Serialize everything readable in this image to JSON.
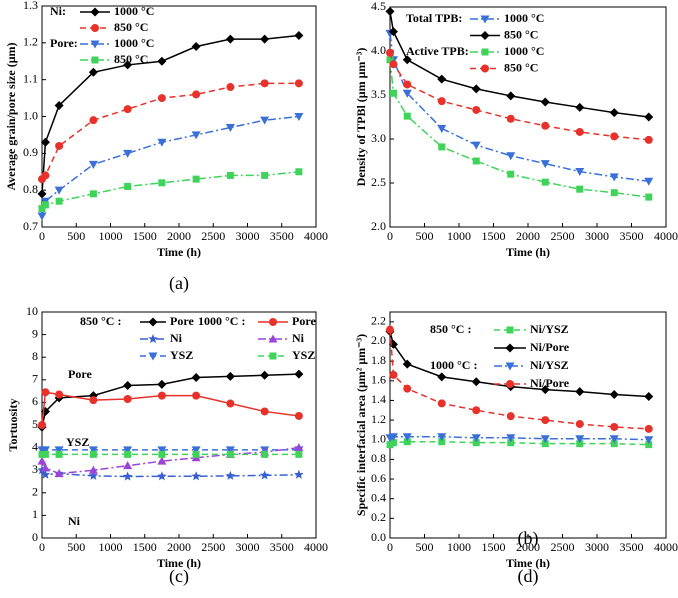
{
  "chart_data": [
    {
      "type": "line",
      "panel_label": "(a)",
      "xlabel": "Time (h)",
      "ylabel": "Average grain/pore size (μm)",
      "x": [
        0,
        50,
        250,
        750,
        1250,
        1750,
        2250,
        2750,
        3250,
        3750
      ],
      "xlim": [
        0,
        4000
      ],
      "xticks": [
        0,
        500,
        1000,
        1500,
        2000,
        2500,
        3000,
        3500,
        4000
      ],
      "ylim": [
        0.7,
        1.3
      ],
      "yticks": [
        0.7,
        0.8,
        0.9,
        {
          "value": 1.0,
          "label": "1.0"
        },
        1.1,
        1.2,
        1.3
      ],
      "series": [
        {
          "group": "Ni:",
          "name": "1000 °C",
          "color": "#000000",
          "marker": "diamond",
          "dash": "solid",
          "values": [
            0.79,
            0.93,
            1.03,
            1.12,
            1.14,
            1.15,
            1.19,
            1.21,
            1.21,
            1.22
          ]
        },
        {
          "group": "Ni:",
          "name": "850 °C",
          "color": "#e8312a",
          "marker": "circle",
          "dash": "dash",
          "values": [
            0.83,
            0.84,
            0.92,
            0.99,
            1.02,
            1.05,
            1.06,
            1.08,
            1.09,
            1.09
          ]
        },
        {
          "group": "Pore:",
          "name": "1000 °C",
          "color": "#3a6fd8",
          "marker": "tridown",
          "dash": "dashdot",
          "values": [
            0.73,
            0.77,
            0.8,
            0.87,
            0.9,
            0.93,
            0.95,
            0.97,
            0.99,
            1.0
          ]
        },
        {
          "group": "Pore:",
          "name": "850 °C",
          "color": "#3fd35a",
          "marker": "square",
          "dash": "dashdot",
          "values": [
            0.75,
            0.76,
            0.77,
            0.79,
            0.81,
            0.82,
            0.83,
            0.84,
            0.84,
            0.85
          ]
        }
      ]
    },
    {
      "type": "line",
      "panel_label": "(b)",
      "xlabel": "Time (h)",
      "ylabel": "Density of TPBl (μm μm⁻³)",
      "x": [
        0,
        50,
        250,
        750,
        1250,
        1750,
        2250,
        2750,
        3250,
        3750
      ],
      "xlim": [
        0,
        4000
      ],
      "xticks": [
        0,
        500,
        1000,
        1500,
        2000,
        2500,
        3000,
        3500,
        4000
      ],
      "ylim": [
        2.0,
        4.5
      ],
      "yticks": [
        {
          "value": 2.0,
          "label": "2.0"
        },
        2.5,
        {
          "value": 3.0,
          "label": "3.0"
        },
        3.5,
        {
          "value": 4.0,
          "label": "4.0"
        },
        4.5
      ],
      "series": [
        {
          "group": "Total TPB:",
          "name": "1000 °C",
          "color": "#3a6fd8",
          "marker": "tridown",
          "dash": "dashdot",
          "values": [
            4.2,
            3.9,
            3.52,
            3.12,
            2.93,
            2.81,
            2.72,
            2.63,
            2.57,
            2.52
          ]
        },
        {
          "group": "Total TPB:",
          "name": "850 °C",
          "color": "#000000",
          "marker": "diamond",
          "dash": "solid",
          "values": [
            4.45,
            4.22,
            3.9,
            3.68,
            3.57,
            3.49,
            3.42,
            3.36,
            3.3,
            3.25
          ]
        },
        {
          "group": "Active TPB:",
          "name": "1000 °C",
          "color": "#3fd35a",
          "marker": "square",
          "dash": "dashdot",
          "values": [
            3.9,
            3.52,
            3.26,
            2.91,
            2.75,
            2.6,
            2.51,
            2.43,
            2.39,
            2.34
          ]
        },
        {
          "group": "Active TPB:",
          "name": "850 °C",
          "color": "#e8312a",
          "marker": "circle",
          "dash": "dash",
          "values": [
            3.98,
            3.85,
            3.62,
            3.43,
            3.33,
            3.23,
            3.15,
            3.08,
            3.03,
            2.99
          ]
        }
      ]
    },
    {
      "type": "line",
      "panel_label": "(c)",
      "xlabel": "Time (h)",
      "ylabel": "Tortuosity",
      "annotations": [
        "Pore",
        "YSZ",
        "Ni"
      ],
      "x": [
        0,
        50,
        250,
        750,
        1250,
        1750,
        2250,
        2750,
        3250,
        3750
      ],
      "xlim": [
        0,
        4000
      ],
      "xticks": [
        0,
        500,
        1000,
        1500,
        2000,
        2500,
        3000,
        3500,
        4000
      ],
      "ylim": [
        0,
        10
      ],
      "yticks": [
        0,
        1,
        2,
        3,
        4,
        5,
        6,
        7,
        8,
        9,
        10
      ],
      "series": [
        {
          "group": "850 °C :",
          "name": "Pore",
          "color": "#000000",
          "marker": "diamond",
          "dash": "solid",
          "values": [
            4.9,
            5.6,
            6.2,
            6.3,
            6.75,
            6.8,
            7.1,
            7.15,
            7.2,
            7.25
          ]
        },
        {
          "group": "850 °C :",
          "name": "Ni",
          "color": "#3a5fd0",
          "marker": "star",
          "dash": "dashdot",
          "values": [
            3.0,
            2.8,
            2.85,
            2.75,
            2.72,
            2.73,
            2.73,
            2.75,
            2.77,
            2.8
          ]
        },
        {
          "group": "850 °C :",
          "name": "YSZ",
          "color": "#3a6fd8",
          "marker": "tridown",
          "dash": "dash",
          "values": [
            3.9,
            3.9,
            3.9,
            3.9,
            3.9,
            3.9,
            3.9,
            3.9,
            3.9,
            3.9
          ]
        },
        {
          "group": "1000 °C :",
          "name": "Pore",
          "color": "#e8312a",
          "marker": "circle",
          "dash": "solid",
          "values": [
            5.0,
            6.45,
            6.35,
            6.1,
            6.15,
            6.3,
            6.3,
            5.95,
            5.6,
            5.4
          ]
        },
        {
          "group": "1000 °C :",
          "name": "Ni",
          "color": "#9a45d8",
          "marker": "triup",
          "dash": "dashdot",
          "values": [
            3.4,
            3.1,
            2.85,
            3.0,
            3.2,
            3.4,
            3.55,
            3.7,
            3.8,
            4.0
          ]
        },
        {
          "group": "1000 °C :",
          "name": "YSZ",
          "color": "#3fd35a",
          "marker": "square",
          "dash": "dash",
          "values": [
            3.7,
            3.7,
            3.7,
            3.7,
            3.7,
            3.7,
            3.7,
            3.7,
            3.7,
            3.7
          ]
        }
      ]
    },
    {
      "type": "line",
      "panel_label": "(d)",
      "xlabel": "Time (h)",
      "ylabel": "Specific interfacial area (μm² μm⁻³)",
      "x": [
        0,
        50,
        250,
        750,
        1250,
        1750,
        2250,
        2750,
        3250,
        3750
      ],
      "xlim": [
        0,
        4000
      ],
      "xticks": [
        0,
        500,
        1000,
        1500,
        2000,
        2500,
        3000,
        3500,
        4000
      ],
      "ylim": [
        0,
        2.3
      ],
      "yticks": [
        {
          "value": 0,
          "label": "0.0"
        },
        0.2,
        0.4,
        0.6,
        0.8,
        {
          "value": 1,
          "label": "1.0"
        },
        1.2,
        1.4,
        1.6,
        1.8,
        {
          "value": 2,
          "label": "2.0"
        },
        2.2
      ],
      "series": [
        {
          "group": "850 °C :",
          "name": "Ni/YSZ",
          "color": "#3fd35a",
          "marker": "square",
          "dash": "dash",
          "values": [
            0.95,
            0.97,
            0.98,
            0.98,
            0.97,
            0.97,
            0.96,
            0.96,
            0.96,
            0.95
          ]
        },
        {
          "group": "850 °C :",
          "name": "Ni/Pore",
          "color": "#000000",
          "marker": "diamond",
          "dash": "solid",
          "values": [
            2.1,
            1.97,
            1.77,
            1.64,
            1.59,
            1.54,
            1.51,
            1.49,
            1.46,
            1.44
          ]
        },
        {
          "group": "1000 °C :",
          "name": "Ni/YSZ",
          "color": "#3a6fd8",
          "marker": "tridown",
          "dash": "dashdot",
          "values": [
            1.02,
            1.03,
            1.03,
            1.03,
            1.02,
            1.02,
            1.01,
            1.01,
            1.01,
            1.0
          ]
        },
        {
          "group": "1000 °C :",
          "name": "Ni/Pore",
          "color": "#e8312a",
          "marker": "circle",
          "dash": "dash",
          "values": [
            2.12,
            1.66,
            1.52,
            1.37,
            1.3,
            1.24,
            1.2,
            1.16,
            1.13,
            1.11
          ]
        }
      ]
    }
  ]
}
